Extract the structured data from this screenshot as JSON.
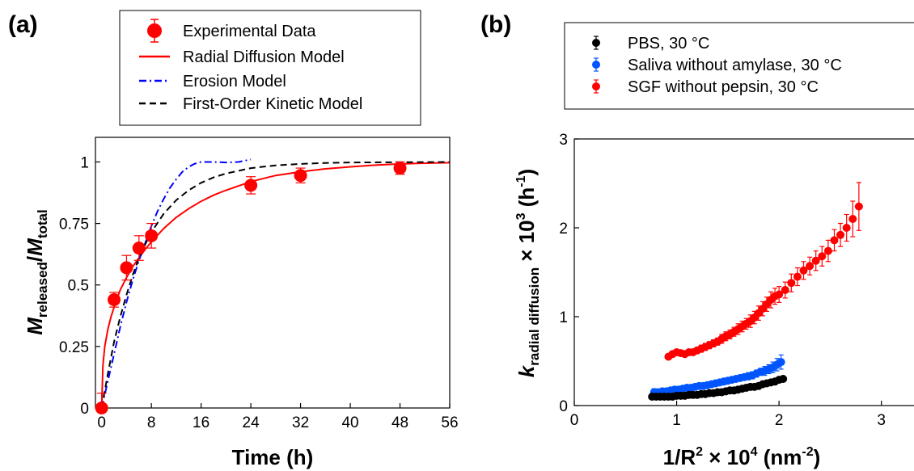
{
  "chart_data": [
    {
      "panel": "(a)",
      "type": "scatter",
      "xlabel": "Time (h)",
      "ylabel": {
        "base1": "M",
        "sub1": "released",
        "sep": "/",
        "base2": "M",
        "sub2": "total"
      },
      "xlim": [
        -1,
        56
      ],
      "ylim": [
        0,
        1.1
      ],
      "xticks": [
        0,
        8,
        16,
        24,
        32,
        40,
        48,
        56
      ],
      "yticks": [
        0,
        0.25,
        0.5,
        0.75,
        1
      ],
      "ytick_labels": [
        "0",
        "0.25",
        "0.5",
        "0.75",
        "1"
      ],
      "legend": [
        {
          "label": "Experimental Data",
          "kind": "marker",
          "color": "#ff0000"
        },
        {
          "label": "Radial Diffusion Model",
          "kind": "solid",
          "color": "#ff0000"
        },
        {
          "label": "Erosion Model",
          "kind": "dashdot",
          "color": "#0000ff"
        },
        {
          "label": "First-Order Kinetic Model",
          "kind": "dashed",
          "color": "#000000"
        }
      ],
      "series": [
        {
          "name": "Experimental Data",
          "color": "#ff0000",
          "x": [
            0,
            2,
            4,
            6,
            8,
            24,
            32,
            48
          ],
          "y": [
            0.0,
            0.44,
            0.57,
            0.65,
            0.7,
            0.905,
            0.945,
            0.975
          ],
          "err": [
            0.06,
            0.03,
            0.05,
            0.05,
            0.05,
            0.035,
            0.03,
            0.025
          ]
        }
      ],
      "curves": [
        {
          "name": "Radial Diffusion Model",
          "color": "#ff0000",
          "x": [
            0,
            0.2,
            0.5,
            1,
            1.5,
            2,
            3,
            4,
            5,
            6,
            7,
            8,
            10,
            12,
            14,
            16,
            18,
            20,
            24,
            28,
            32,
            36,
            40,
            44,
            48,
            52,
            56
          ],
          "y": [
            0,
            0.17,
            0.25,
            0.32,
            0.37,
            0.41,
            0.48,
            0.53,
            0.575,
            0.61,
            0.645,
            0.675,
            0.73,
            0.775,
            0.81,
            0.84,
            0.865,
            0.885,
            0.92,
            0.945,
            0.96,
            0.972,
            0.98,
            0.987,
            0.992,
            0.995,
            0.997
          ]
        },
        {
          "name": "Erosion Model",
          "color": "#0000ff",
          "x": [
            0,
            1,
            2,
            3,
            4,
            5,
            6,
            7,
            8,
            9,
            10,
            11,
            12,
            13,
            14,
            15,
            16,
            17,
            18,
            19,
            20,
            21,
            22,
            23,
            24
          ],
          "y": [
            0,
            0.11,
            0.22,
            0.33,
            0.43,
            0.52,
            0.6,
            0.67,
            0.74,
            0.8,
            0.85,
            0.895,
            0.93,
            0.96,
            0.98,
            0.993,
            1.0,
            1.0,
            1.0,
            0.999,
            0.998,
            0.999,
            1.0,
            1.005,
            1.01
          ]
        },
        {
          "name": "First-Order Kinetic Model",
          "color": "#000000",
          "x": [
            0,
            1,
            2,
            3,
            4,
            5,
            6,
            7,
            8,
            10,
            12,
            14,
            16,
            18,
            20,
            24,
            28,
            32,
            36,
            40,
            48,
            56
          ],
          "y": [
            0,
            0.14,
            0.27,
            0.37,
            0.46,
            0.54,
            0.61,
            0.665,
            0.715,
            0.79,
            0.845,
            0.885,
            0.915,
            0.937,
            0.953,
            0.975,
            0.986,
            0.992,
            0.996,
            0.998,
            0.999,
            1.0
          ]
        }
      ]
    },
    {
      "panel": "(b)",
      "type": "scatter",
      "xlabel": {
        "pre": "1/R",
        "sup1": "2",
        "mid": " × 10",
        "sup2": "4",
        "post1": " (nm",
        "sup3": "-2",
        "post2": ")"
      },
      "ylabel": {
        "base": "k",
        "sub": "radial diffusion",
        "mid": " × 10",
        "sup1": "3",
        "post1": " (h",
        "sup2": "-1",
        "post2": ")"
      },
      "xlim": [
        0,
        3.35
      ],
      "ylim": [
        0,
        3
      ],
      "xticks": [
        0,
        1,
        2,
        3
      ],
      "yticks": [
        0,
        1,
        2,
        3
      ],
      "legend": [
        {
          "label": "PBS, 30 °C",
          "color": "#000000"
        },
        {
          "label": "Saliva without amylase, 30 °C",
          "color": "#0055ff"
        },
        {
          "label": "SGF without pepsin, 30 °C",
          "color": "#ff0000"
        }
      ],
      "series": [
        {
          "name": "SGF without pepsin, 30 °C",
          "color": "#ff0000",
          "x": [
            0.92,
            0.96,
            1.0,
            1.04,
            1.08,
            1.12,
            1.16,
            1.2,
            1.24,
            1.28,
            1.32,
            1.36,
            1.4,
            1.44,
            1.48,
            1.52,
            1.56,
            1.6,
            1.64,
            1.68,
            1.72,
            1.76,
            1.8,
            1.84,
            1.88,
            1.92,
            1.96,
            2.0,
            2.06,
            2.12,
            2.18,
            2.24,
            2.3,
            2.36,
            2.42,
            2.48,
            2.54,
            2.6,
            2.66,
            2.72,
            2.78
          ],
          "y": [
            0.55,
            0.58,
            0.6,
            0.59,
            0.58,
            0.6,
            0.6,
            0.62,
            0.64,
            0.66,
            0.68,
            0.7,
            0.72,
            0.75,
            0.78,
            0.8,
            0.83,
            0.86,
            0.89,
            0.92,
            0.95,
            0.99,
            1.04,
            1.09,
            1.14,
            1.19,
            1.23,
            1.25,
            1.3,
            1.38,
            1.45,
            1.52,
            1.57,
            1.63,
            1.68,
            1.74,
            1.86,
            1.92,
            2.0,
            2.1,
            2.24
          ],
          "err": [
            0.03,
            0.03,
            0.03,
            0.03,
            0.03,
            0.03,
            0.03,
            0.03,
            0.04,
            0.04,
            0.04,
            0.04,
            0.04,
            0.05,
            0.05,
            0.05,
            0.05,
            0.06,
            0.06,
            0.06,
            0.07,
            0.07,
            0.08,
            0.08,
            0.08,
            0.09,
            0.09,
            0.09,
            0.09,
            0.1,
            0.1,
            0.1,
            0.1,
            0.11,
            0.11,
            0.12,
            0.12,
            0.13,
            0.15,
            0.2,
            0.27
          ]
        },
        {
          "name": "Saliva without amylase, 30 °C",
          "color": "#0055ff",
          "x": [
            0.78,
            0.82,
            0.86,
            0.9,
            0.94,
            0.98,
            1.02,
            1.06,
            1.1,
            1.14,
            1.18,
            1.22,
            1.26,
            1.3,
            1.34,
            1.38,
            1.42,
            1.46,
            1.5,
            1.54,
            1.58,
            1.62,
            1.66,
            1.7,
            1.74,
            1.78,
            1.82,
            1.86,
            1.9,
            1.94,
            1.98,
            2.02
          ],
          "y": [
            0.15,
            0.15,
            0.16,
            0.16,
            0.17,
            0.18,
            0.18,
            0.19,
            0.2,
            0.2,
            0.21,
            0.22,
            0.22,
            0.23,
            0.24,
            0.25,
            0.26,
            0.27,
            0.28,
            0.29,
            0.3,
            0.31,
            0.32,
            0.33,
            0.34,
            0.36,
            0.38,
            0.39,
            0.41,
            0.43,
            0.46,
            0.49
          ],
          "err": [
            0.04,
            0.03,
            0.03,
            0.03,
            0.03,
            0.03,
            0.03,
            0.03,
            0.03,
            0.03,
            0.03,
            0.03,
            0.03,
            0.03,
            0.03,
            0.03,
            0.03,
            0.03,
            0.03,
            0.03,
            0.03,
            0.03,
            0.03,
            0.04,
            0.04,
            0.04,
            0.04,
            0.05,
            0.05,
            0.06,
            0.07,
            0.08
          ]
        },
        {
          "name": "PBS, 30 °C",
          "color": "#000000",
          "x": [
            0.76,
            0.8,
            0.84,
            0.88,
            0.92,
            0.96,
            1.0,
            1.04,
            1.08,
            1.12,
            1.16,
            1.2,
            1.24,
            1.28,
            1.32,
            1.36,
            1.4,
            1.44,
            1.48,
            1.52,
            1.56,
            1.6,
            1.64,
            1.68,
            1.72,
            1.76,
            1.8,
            1.84,
            1.88,
            1.92,
            1.96,
            2.0,
            2.04
          ],
          "y": [
            0.1,
            0.1,
            0.1,
            0.1,
            0.1,
            0.1,
            0.11,
            0.11,
            0.11,
            0.12,
            0.12,
            0.12,
            0.13,
            0.13,
            0.14,
            0.14,
            0.15,
            0.15,
            0.16,
            0.17,
            0.17,
            0.18,
            0.19,
            0.2,
            0.21,
            0.21,
            0.22,
            0.24,
            0.25,
            0.26,
            0.27,
            0.29,
            0.3
          ],
          "err": [
            0.03,
            0.02,
            0.02,
            0.02,
            0.02,
            0.02,
            0.02,
            0.02,
            0.02,
            0.02,
            0.02,
            0.02,
            0.02,
            0.02,
            0.02,
            0.02,
            0.02,
            0.02,
            0.02,
            0.02,
            0.02,
            0.02,
            0.02,
            0.02,
            0.02,
            0.02,
            0.02,
            0.02,
            0.02,
            0.02,
            0.02,
            0.02,
            0.02
          ]
        }
      ]
    }
  ]
}
